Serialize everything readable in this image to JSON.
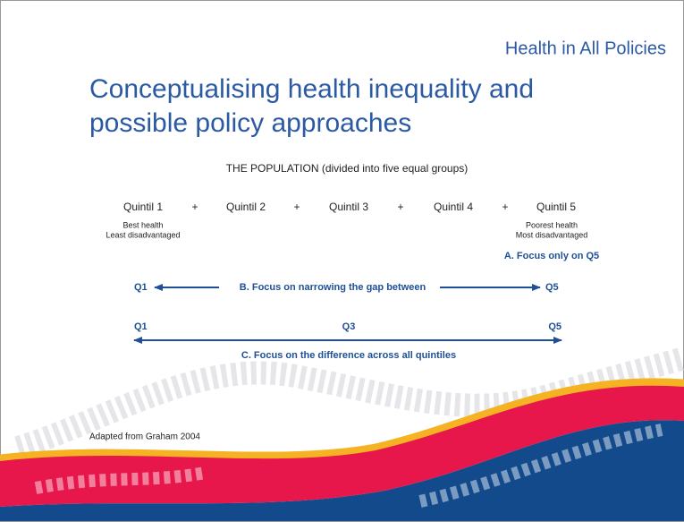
{
  "header": "Health in All Policies",
  "title": [
    "Conceptualising health inequality and",
    "possible policy approaches"
  ],
  "population": "THE POPULATION (divided into five equal groups)",
  "quintiles": [
    "Quintil 1",
    "Quintil 2",
    "Quintil 3",
    "Quintil 4",
    "Quintil 5"
  ],
  "separators": [
    "+",
    "+",
    "+",
    "+"
  ],
  "q1_description": [
    "Best health",
    "Least disadvantaged"
  ],
  "q5_description": [
    "Poorest health",
    "Most disadvantaged"
  ],
  "approach_a": "A. Focus only on Q5",
  "approach_b": {
    "left": "Q1",
    "text": "B. Focus on narrowing the gap between",
    "right": "Q5"
  },
  "approach_c": {
    "left": "Q1",
    "middle": "Q3",
    "right": "Q5",
    "text": "C. Focus on the difference across all quintiles"
  },
  "source": "Adapted from Graham 2004"
}
